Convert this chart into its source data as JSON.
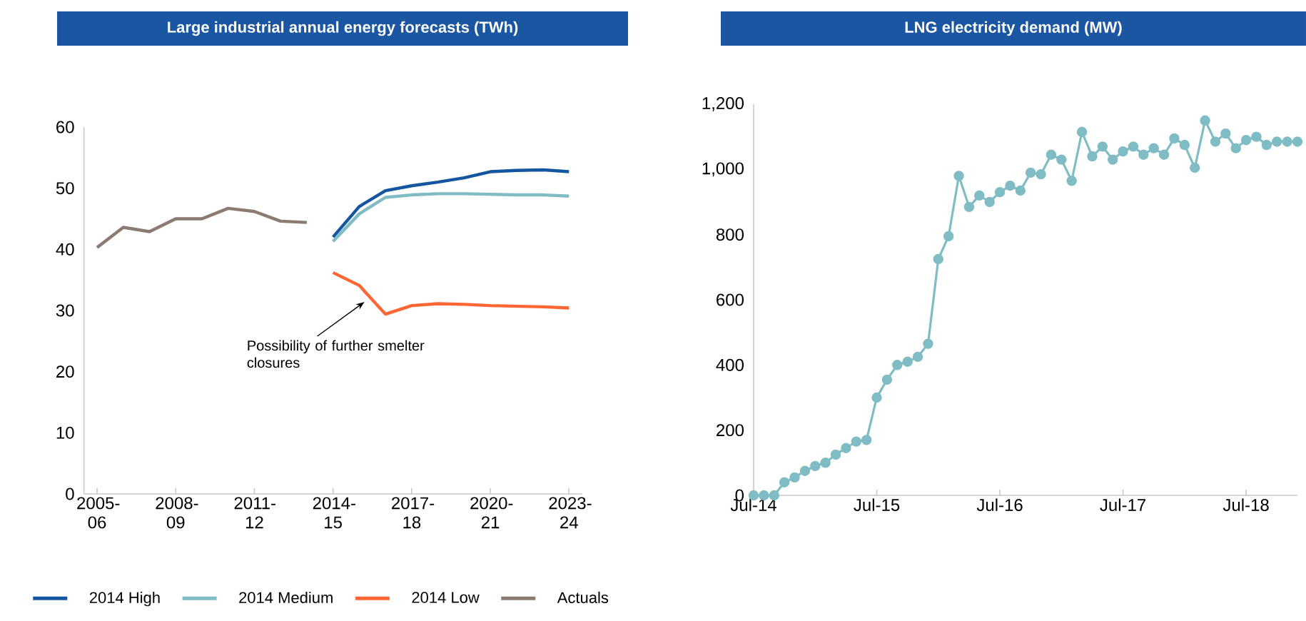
{
  "chart_data": [
    {
      "type": "line",
      "title": "Large industrial annual energy forecasts (TWh)",
      "categories": [
        "2005-06",
        null,
        null,
        "2008-09",
        null,
        null,
        "2011-12",
        null,
        null,
        "2014-15",
        null,
        null,
        "2017-18",
        null,
        null,
        "2020-21",
        null,
        null,
        "2023-24"
      ],
      "series": [
        {
          "name": "2014 High",
          "color": "#1456a0",
          "values": [
            null,
            null,
            null,
            null,
            null,
            null,
            null,
            null,
            null,
            42.0,
            47.0,
            49.6,
            50.4,
            51.0,
            51.7,
            52.7,
            52.9,
            53.0,
            52.7
          ]
        },
        {
          "name": "2014 Medium",
          "color": "#7fbcc4",
          "values": [
            null,
            null,
            null,
            null,
            null,
            null,
            null,
            null,
            null,
            41.3,
            45.8,
            48.5,
            48.9,
            49.1,
            49.1,
            49.0,
            48.9,
            48.9,
            48.7
          ]
        },
        {
          "name": "2014 Low",
          "color": "#ff6633",
          "values": [
            null,
            null,
            null,
            null,
            null,
            null,
            null,
            null,
            null,
            36.2,
            34.1,
            29.4,
            30.8,
            31.1,
            31.0,
            30.8,
            30.7,
            30.6,
            30.4
          ]
        },
        {
          "name": "Actuals",
          "color": "#8c7b70",
          "values": [
            40.3,
            43.6,
            42.9,
            45.0,
            45.0,
            46.7,
            46.2,
            44.6,
            44.4,
            null,
            null,
            null,
            null,
            null,
            null,
            null,
            null,
            null,
            null
          ]
        }
      ],
      "ylim": [
        0,
        60
      ],
      "yticks": [
        0,
        10,
        20,
        30,
        40,
        50,
        60
      ],
      "annotations": [
        "Possibility of further smelter closures"
      ],
      "legend": "bottom"
    },
    {
      "type": "line",
      "title": "LNG electricity demand (MW)",
      "categories": [
        "Jul-14",
        null,
        null,
        null,
        null,
        null,
        null,
        null,
        null,
        null,
        null,
        null,
        "Jul-15",
        null,
        null,
        null,
        null,
        null,
        null,
        null,
        null,
        null,
        null,
        null,
        "Jul-16",
        null,
        null,
        null,
        null,
        null,
        null,
        null,
        null,
        null,
        null,
        null,
        "Jul-17",
        null,
        null,
        null,
        null,
        null,
        null,
        null,
        null,
        null,
        null,
        null,
        "Jul-18",
        null,
        null,
        null,
        null,
        null
      ],
      "series": [
        {
          "color": "#7fbcc4",
          "values": [
            0,
            0,
            0,
            40,
            55,
            75,
            90,
            100,
            125,
            145,
            165,
            170,
            300,
            355,
            400,
            410,
            425,
            465,
            725,
            795,
            980,
            885,
            920,
            900,
            930,
            950,
            935,
            990,
            985,
            1045,
            1030,
            965,
            1115,
            1040,
            1070,
            1030,
            1055,
            1070,
            1045,
            1065,
            1045,
            1095,
            1075,
            1005,
            1150,
            1085,
            1110,
            1065,
            1090,
            1100,
            1075,
            1085,
            1085,
            1085
          ]
        }
      ],
      "ylim": [
        0,
        1200
      ],
      "yticks": [
        0,
        200,
        400,
        600,
        800,
        {
          "value": 1000,
          "label": "1,000"
        },
        {
          "value": 1200,
          "label": "1,200"
        }
      ],
      "marker": "circle"
    }
  ]
}
